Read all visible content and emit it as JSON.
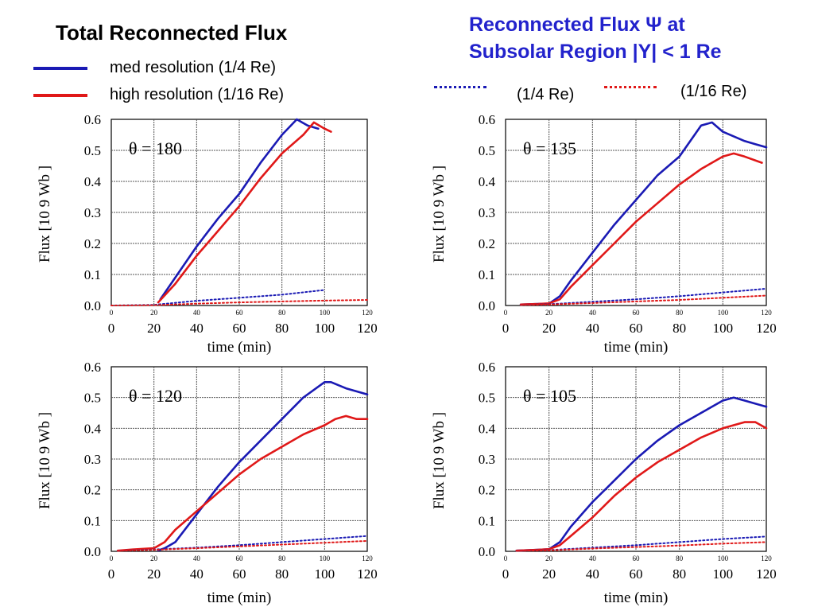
{
  "header": {
    "title_left": "Total Reconnected Flux",
    "title_right_line1": "Reconnected Flux Ψ at",
    "title_right_line2": "Subsolar Region |Y| < 1 Re"
  },
  "legend": {
    "solid": [
      {
        "label": "med resolution (1/4 Re)",
        "color": "#1a1ab4"
      },
      {
        "label": "high resolution (1/16 Re)",
        "color": "#e01818"
      }
    ],
    "dotted": [
      {
        "label": "(1/4 Re)",
        "color": "#1a1ab4"
      },
      {
        "label": "(1/16 Re)",
        "color": "#e01818"
      }
    ]
  },
  "colors": {
    "med": "#1a1ab4",
    "high": "#e01818"
  },
  "chart_data": [
    {
      "type": "line",
      "annotation": "θ =  180",
      "xlabel": "time (min)",
      "ylabel": "Flux    [10 9    Wb ]",
      "xlim": [
        0,
        120
      ],
      "ylim": [
        0,
        0.6
      ],
      "xticks": [
        "0",
        "20",
        "40",
        "60",
        "80",
        "100",
        "120"
      ],
      "yticks": [
        "0.0",
        "0.1",
        "0.2",
        "0.3",
        "0.4",
        "0.5",
        "0.6"
      ],
      "series": [
        {
          "name": "med resolution (1/4 Re)",
          "style": "solid",
          "color": "#1a1ab4",
          "x": [
            23,
            30,
            40,
            50,
            60,
            70,
            80,
            87,
            92,
            97
          ],
          "y": [
            0.02,
            0.09,
            0.19,
            0.28,
            0.36,
            0.46,
            0.55,
            0.6,
            0.58,
            0.57
          ]
        },
        {
          "name": "high resolution (1/16 Re)",
          "style": "solid",
          "color": "#e01818",
          "x": [
            22,
            30,
            40,
            50,
            60,
            70,
            80,
            90,
            95,
            100,
            103
          ],
          "y": [
            0.01,
            0.07,
            0.16,
            0.24,
            0.32,
            0.41,
            0.49,
            0.55,
            0.59,
            0.57,
            0.56
          ]
        },
        {
          "name": "(1/4 Re)",
          "style": "dotted",
          "color": "#1a1ab4",
          "x": [
            0,
            20,
            40,
            60,
            80,
            100
          ],
          "y": [
            0,
            0.002,
            0.015,
            0.025,
            0.035,
            0.05
          ]
        },
        {
          "name": "(1/16 Re)",
          "style": "dotted",
          "color": "#e01818",
          "x": [
            0,
            20,
            40,
            60,
            80,
            100,
            120
          ],
          "y": [
            0,
            0.001,
            0.006,
            0.01,
            0.013,
            0.016,
            0.018
          ]
        }
      ]
    },
    {
      "type": "line",
      "annotation": "θ =  135",
      "xlabel": "time (min)",
      "ylabel": "Flux    [10 9    Wb ]",
      "xlim": [
        0,
        120
      ],
      "ylim": [
        0,
        0.6
      ],
      "xticks": [
        "0",
        "20",
        "40",
        "60",
        "80",
        "100",
        "120"
      ],
      "yticks": [
        "0.0",
        "0.1",
        "0.2",
        "0.3",
        "0.4",
        "0.5",
        "0.6"
      ],
      "series": [
        {
          "name": "med resolution (1/4 Re)",
          "style": "solid",
          "color": "#1a1ab4",
          "x": [
            7,
            15,
            20,
            25,
            30,
            40,
            50,
            60,
            70,
            80,
            90,
            95,
            100,
            110,
            115,
            120
          ],
          "y": [
            0.003,
            0.005,
            0.006,
            0.03,
            0.08,
            0.17,
            0.26,
            0.34,
            0.42,
            0.48,
            0.58,
            0.59,
            0.56,
            0.53,
            0.52,
            0.51
          ]
        },
        {
          "name": "high resolution (1/16 Re)",
          "style": "solid",
          "color": "#e01818",
          "x": [
            7,
            15,
            20,
            25,
            30,
            40,
            50,
            60,
            70,
            80,
            90,
            100,
            105,
            110,
            118
          ],
          "y": [
            0.003,
            0.005,
            0.007,
            0.02,
            0.06,
            0.13,
            0.2,
            0.27,
            0.33,
            0.39,
            0.44,
            0.48,
            0.49,
            0.48,
            0.46
          ]
        },
        {
          "name": "(1/4 Re)",
          "style": "dotted",
          "color": "#1a1ab4",
          "x": [
            7,
            20,
            40,
            60,
            80,
            100,
            120
          ],
          "y": [
            0.002,
            0.004,
            0.012,
            0.02,
            0.03,
            0.042,
            0.054
          ]
        },
        {
          "name": "(1/16 Re)",
          "style": "dotted",
          "color": "#e01818",
          "x": [
            7,
            20,
            40,
            60,
            80,
            100,
            120
          ],
          "y": [
            0.002,
            0.003,
            0.008,
            0.013,
            0.018,
            0.025,
            0.032
          ]
        }
      ]
    },
    {
      "type": "line",
      "annotation": "θ =  120",
      "xlabel": "time (min)",
      "ylabel": "Flux    [10 9    Wb ]",
      "xlim": [
        0,
        120
      ],
      "ylim": [
        0,
        0.6
      ],
      "xticks": [
        "0",
        "20",
        "40",
        "60",
        "80",
        "100",
        "120"
      ],
      "yticks": [
        "0.0",
        "0.1",
        "0.2",
        "0.3",
        "0.4",
        "0.5",
        "0.6"
      ],
      "series": [
        {
          "name": "med resolution (1/4 Re)",
          "style": "solid",
          "color": "#1a1ab4",
          "x": [
            22,
            25,
            30,
            40,
            50,
            60,
            70,
            80,
            90,
            100,
            103,
            110,
            120
          ],
          "y": [
            0.003,
            0.01,
            0.03,
            0.12,
            0.21,
            0.29,
            0.36,
            0.43,
            0.5,
            0.55,
            0.55,
            0.53,
            0.51
          ]
        },
        {
          "name": "high resolution (1/16 Re)",
          "style": "solid",
          "color": "#e01818",
          "x": [
            3,
            10,
            20,
            25,
            30,
            40,
            50,
            60,
            70,
            80,
            90,
            100,
            105,
            110,
            115,
            120
          ],
          "y": [
            0.002,
            0.006,
            0.01,
            0.03,
            0.07,
            0.13,
            0.19,
            0.25,
            0.3,
            0.34,
            0.38,
            0.41,
            0.43,
            0.44,
            0.43,
            0.43
          ]
        },
        {
          "name": "(1/4 Re)",
          "style": "dotted",
          "color": "#1a1ab4",
          "x": [
            3,
            20,
            40,
            60,
            80,
            100,
            120
          ],
          "y": [
            0.002,
            0.006,
            0.012,
            0.02,
            0.03,
            0.04,
            0.05
          ]
        },
        {
          "name": "(1/16 Re)",
          "style": "dotted",
          "color": "#e01818",
          "x": [
            3,
            20,
            40,
            60,
            80,
            100,
            120
          ],
          "y": [
            0.002,
            0.005,
            0.01,
            0.016,
            0.022,
            0.028,
            0.034
          ]
        }
      ]
    },
    {
      "type": "line",
      "annotation": "θ =  105",
      "xlabel": "time (min)",
      "ylabel": "Flux    [10 9    Wb ]",
      "xlim": [
        0,
        120
      ],
      "ylim": [
        0,
        0.6
      ],
      "xticks": [
        "0",
        "20",
        "40",
        "60",
        "80",
        "100",
        "120"
      ],
      "yticks": [
        "0.0",
        "0.1",
        "0.2",
        "0.3",
        "0.4",
        "0.5",
        "0.6"
      ],
      "series": [
        {
          "name": "med resolution (1/4 Re)",
          "style": "solid",
          "color": "#1a1ab4",
          "x": [
            5,
            15,
            20,
            25,
            30,
            40,
            50,
            60,
            70,
            80,
            90,
            100,
            105,
            110,
            120
          ],
          "y": [
            0.002,
            0.005,
            0.007,
            0.03,
            0.08,
            0.16,
            0.23,
            0.3,
            0.36,
            0.41,
            0.45,
            0.49,
            0.5,
            0.49,
            0.47
          ]
        },
        {
          "name": "high resolution (1/16 Re)",
          "style": "solid",
          "color": "#e01818",
          "x": [
            5,
            15,
            20,
            25,
            30,
            40,
            50,
            60,
            70,
            80,
            90,
            100,
            110,
            115,
            120
          ],
          "y": [
            0.002,
            0.005,
            0.007,
            0.02,
            0.05,
            0.11,
            0.18,
            0.24,
            0.29,
            0.33,
            0.37,
            0.4,
            0.42,
            0.42,
            0.4
          ]
        },
        {
          "name": "(1/4 Re)",
          "style": "dotted",
          "color": "#1a1ab4",
          "x": [
            5,
            20,
            40,
            60,
            80,
            100,
            120
          ],
          "y": [
            0.002,
            0.004,
            0.012,
            0.02,
            0.03,
            0.04,
            0.048
          ]
        },
        {
          "name": "(1/16 Re)",
          "style": "dotted",
          "color": "#e01818",
          "x": [
            5,
            20,
            40,
            60,
            80,
            100,
            120
          ],
          "y": [
            0.002,
            0.003,
            0.009,
            0.014,
            0.019,
            0.025,
            0.03
          ]
        }
      ]
    }
  ]
}
